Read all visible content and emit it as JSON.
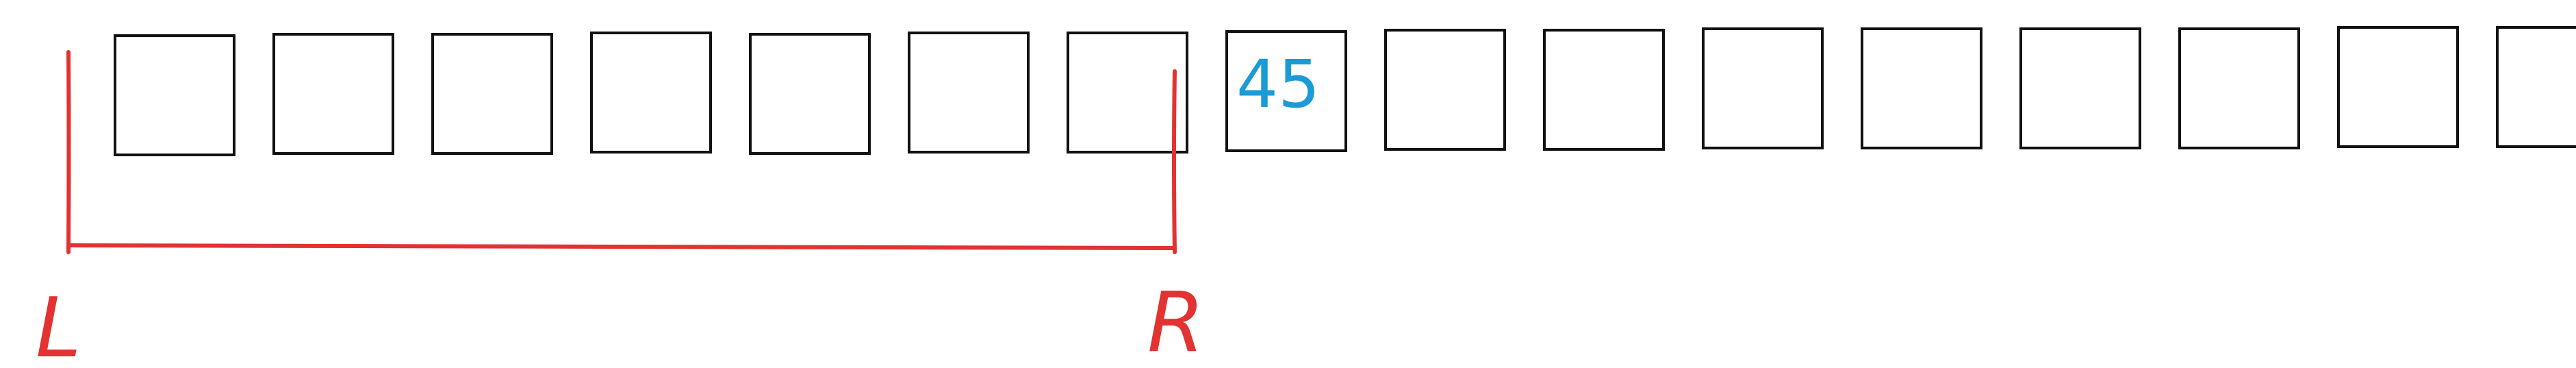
{
  "diagram": {
    "type": "array-window-sketch",
    "cell_count": 16,
    "cells": [
      "",
      "",
      "",
      "",
      "",
      "",
      "",
      "45",
      "",
      "",
      "",
      "",
      "",
      "",
      "",
      ""
    ],
    "left_pointer_label": "L",
    "right_pointer_label": "R",
    "window": {
      "from_cell": 0,
      "to_cell": 6
    },
    "colors": {
      "cell_stroke": "#111111",
      "cell_text": "#1a9ad6",
      "window_bracket": "#e23232",
      "pointer_label": "#e23232"
    }
  }
}
